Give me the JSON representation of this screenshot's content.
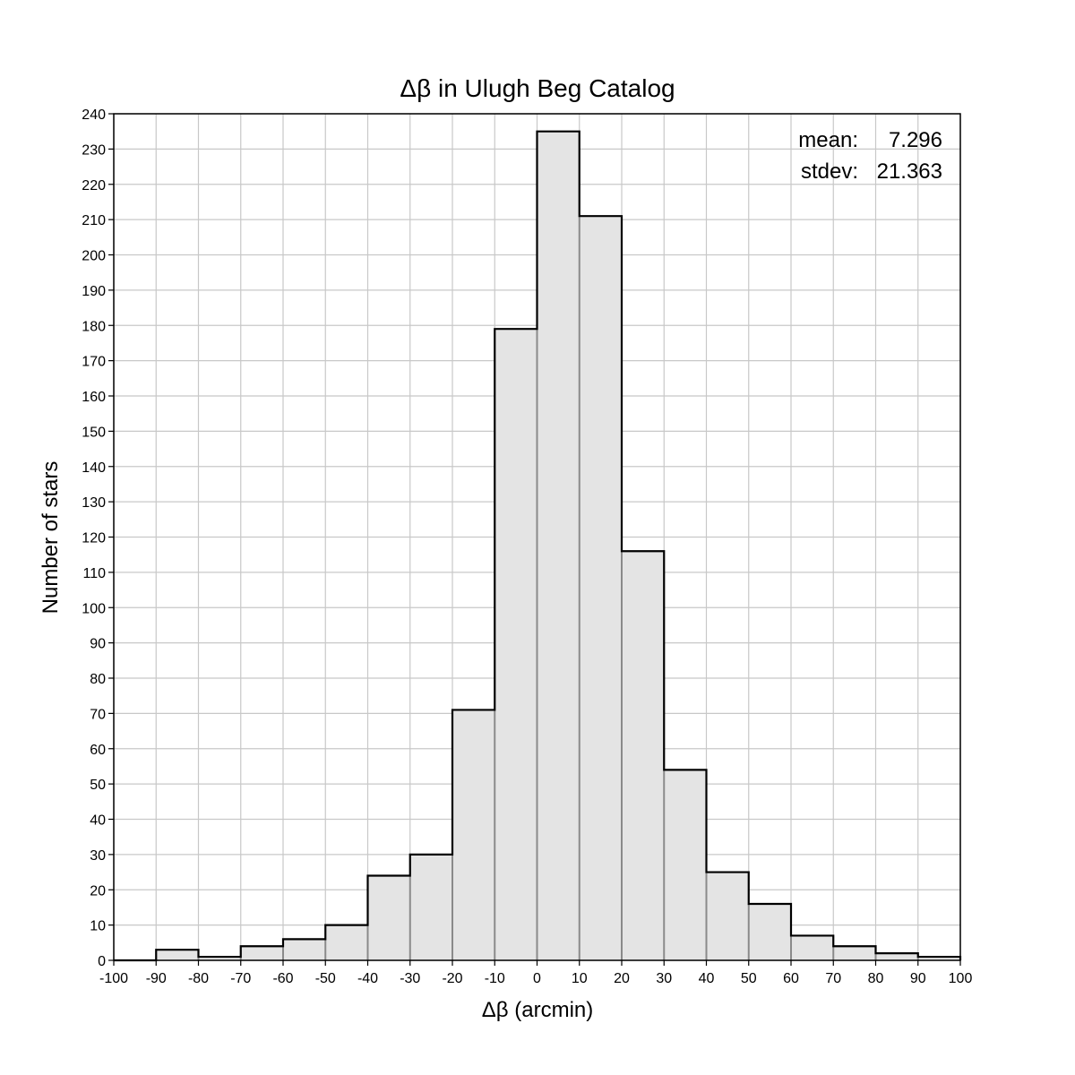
{
  "chart_data": {
    "type": "bar",
    "title": "Δβ in Ulugh Beg Catalog",
    "xlabel": "Δβ (arcmin)",
    "ylabel": "Number of stars",
    "xlim": [
      -100,
      100
    ],
    "ylim": [
      0,
      240
    ],
    "x_ticks": [
      -100,
      -90,
      -80,
      -70,
      -60,
      -50,
      -40,
      -30,
      -20,
      -10,
      0,
      10,
      20,
      30,
      40,
      50,
      60,
      70,
      80,
      90,
      100
    ],
    "y_ticks": [
      0,
      10,
      20,
      30,
      40,
      50,
      60,
      70,
      80,
      90,
      100,
      110,
      120,
      130,
      140,
      150,
      160,
      170,
      180,
      190,
      200,
      210,
      220,
      230,
      240
    ],
    "grid": true,
    "bins": [
      {
        "start": -100,
        "end": -90,
        "count": 0
      },
      {
        "start": -90,
        "end": -80,
        "count": 3
      },
      {
        "start": -80,
        "end": -70,
        "count": 1
      },
      {
        "start": -70,
        "end": -60,
        "count": 4
      },
      {
        "start": -60,
        "end": -50,
        "count": 6
      },
      {
        "start": -50,
        "end": -40,
        "count": 10
      },
      {
        "start": -40,
        "end": -30,
        "count": 24
      },
      {
        "start": -30,
        "end": -20,
        "count": 30
      },
      {
        "start": -20,
        "end": -10,
        "count": 71
      },
      {
        "start": -10,
        "end": 0,
        "count": 179
      },
      {
        "start": 0,
        "end": 10,
        "count": 235
      },
      {
        "start": 10,
        "end": 20,
        "count": 211
      },
      {
        "start": 20,
        "end": 30,
        "count": 116
      },
      {
        "start": 30,
        "end": 40,
        "count": 54
      },
      {
        "start": 40,
        "end": 50,
        "count": 25
      },
      {
        "start": 50,
        "end": 60,
        "count": 16
      },
      {
        "start": 60,
        "end": 70,
        "count": 7
      },
      {
        "start": 70,
        "end": 80,
        "count": 4
      },
      {
        "start": 80,
        "end": 90,
        "count": 2
      },
      {
        "start": 90,
        "end": 100,
        "count": 1
      }
    ],
    "stats": {
      "mean_label": "mean:",
      "mean_value": "7.296",
      "stdev_label": "stdev:",
      "stdev_value": "21.363",
      "placement": "top-right"
    },
    "colors": {
      "bar_fill": "#e4e4e4",
      "outline": "#000000",
      "grid": "#c8c8c8"
    }
  }
}
